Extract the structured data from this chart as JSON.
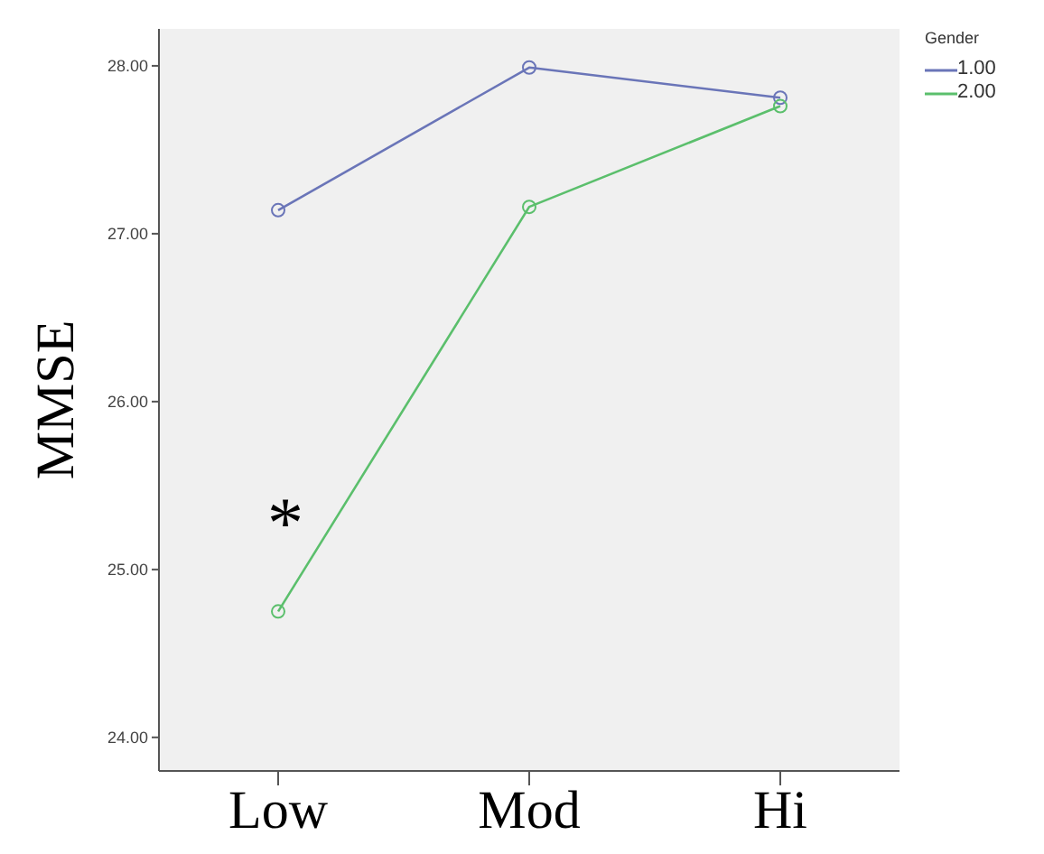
{
  "chart_data": {
    "type": "line",
    "ylabel": "MMSE",
    "legend_title": "Gender",
    "categories": [
      "Low",
      "Mod",
      "Hi"
    ],
    "series": [
      {
        "name": "1.00",
        "color": "#6a75b8",
        "values": [
          27.14,
          27.99,
          27.81
        ]
      },
      {
        "name": "2.00",
        "color": "#5bbf6c",
        "values": [
          24.75,
          27.16,
          27.76
        ]
      }
    ],
    "ylim": [
      23.8,
      28.22
    ],
    "yticks": [
      {
        "value": 24,
        "label": "24.00"
      },
      {
        "value": 25,
        "label": "25.00"
      },
      {
        "value": 26,
        "label": "26.00"
      },
      {
        "value": 27,
        "label": "27.00"
      },
      {
        "value": 28,
        "label": "28.00"
      }
    ],
    "annotations": [
      "*"
    ],
    "grid": false,
    "legend": "top right",
    "marker": "circle",
    "line_style": "solid"
  }
}
